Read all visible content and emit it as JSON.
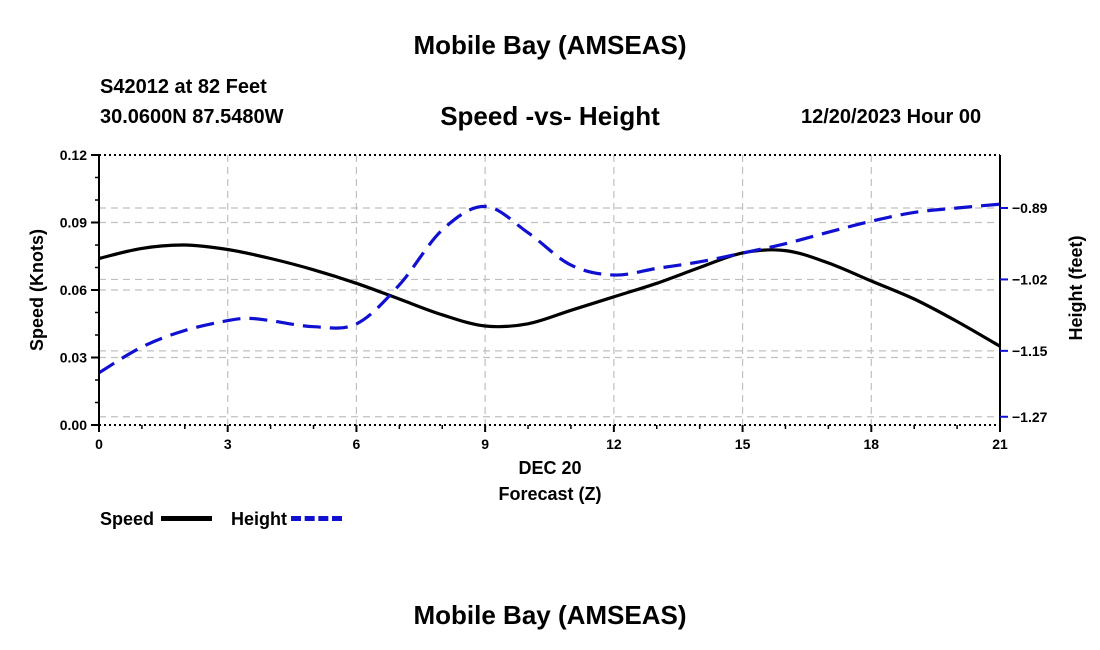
{
  "header": {
    "title": "Mobile Bay (AMSEAS)",
    "station": "S42012 at 82 Feet",
    "location": "30.0600N  87.5480W",
    "chart_title": "Speed -vs- Height",
    "datetime": "12/20/2023 Hour 00"
  },
  "footer": {
    "title": "Mobile Bay (AMSEAS)"
  },
  "legend": {
    "speed_label": "Speed",
    "height_label": "Height"
  },
  "colors": {
    "speed": "#000000",
    "height": "#1010d0",
    "grid": "#c0c0c0"
  },
  "chart_data": {
    "type": "line",
    "title": "Speed -vs- Height",
    "xlabel_line1": "DEC 20",
    "xlabel": "Forecast (Z)",
    "ylabel": "Speed (Knots)",
    "y2label": "Height (feet)",
    "xlim": [
      0,
      21
    ],
    "ylim": [
      0,
      0.12
    ],
    "y2lim": [
      -1.285,
      -0.7935
    ],
    "x_ticks": [
      0,
      3,
      6,
      9,
      12,
      15,
      18,
      21
    ],
    "x_tick_labels": [
      "0",
      "3",
      "6",
      "9",
      "12",
      "15",
      "18",
      "21"
    ],
    "y_ticks": [
      0,
      0.03,
      0.06,
      0.09,
      0.12
    ],
    "y_tick_labels": [
      "0.00",
      "0.03",
      "0.06",
      "0.09",
      "0.12"
    ],
    "y2_ticks": [
      -0.89,
      -1.02,
      -1.15,
      -1.27
    ],
    "y2_tick_labels": [
      "−0.89",
      "−1.02",
      "−1.15",
      "−1.27"
    ],
    "series": [
      {
        "name": "Speed",
        "axis": "left",
        "style": "solid",
        "x": [
          0,
          1,
          2,
          3,
          4,
          5,
          6,
          7,
          8,
          9,
          10,
          11,
          12,
          13,
          14,
          15,
          16,
          17,
          18,
          19,
          20,
          21
        ],
        "values": [
          0.074,
          0.0785,
          0.08,
          0.078,
          0.074,
          0.069,
          0.063,
          0.056,
          0.049,
          0.044,
          0.045,
          0.051,
          0.057,
          0.063,
          0.07,
          0.0765,
          0.0775,
          0.072,
          0.064,
          0.056,
          0.046,
          0.035
        ]
      },
      {
        "name": "Height",
        "axis": "right",
        "style": "dashed",
        "x": [
          0,
          1,
          2,
          3,
          3.5,
          4,
          5,
          6,
          7,
          8,
          9,
          10,
          11,
          12,
          13,
          14,
          15,
          16,
          17,
          18,
          19,
          20,
          21
        ],
        "values": [
          -1.19,
          -1.143,
          -1.113,
          -1.095,
          -1.091,
          -1.095,
          -1.106,
          -1.101,
          -1.03,
          -0.93,
          -0.887,
          -0.935,
          -0.994,
          -1.012,
          -1.0,
          -0.988,
          -0.972,
          -0.955,
          -0.934,
          -0.914,
          -0.898,
          -0.89,
          -0.883
        ]
      }
    ]
  }
}
